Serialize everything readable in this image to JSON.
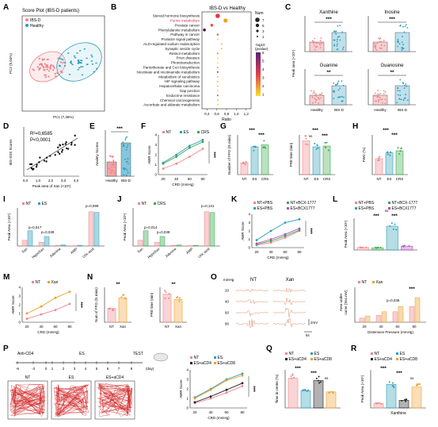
{
  "panels": {
    "A": {
      "label": "A",
      "title": "Score Plot (IBS-D patients)",
      "legend": [
        "IBS-D",
        "Healthy"
      ],
      "xlabel": "PC1 (7,36%)",
      "ylabel": "PC2 (5,04%)",
      "xticks": [
        "-15",
        "-10",
        "-5",
        "0",
        "5",
        "10"
      ],
      "yticks": [
        "-10",
        "-5",
        "0",
        "5",
        "10"
      ],
      "colors": {
        "ibs": "#f0868a",
        "healthy": "#2a9db8"
      }
    },
    "B": {
      "label": "B",
      "title": "IBS-D vs Healthy",
      "xlabel": "Ratio",
      "xticks": [
        "0,4",
        "0,6",
        "0,8",
        "1,0",
        "1,2"
      ],
      "size_legend_title": "Num",
      "size_legend": [
        "7",
        "5",
        "3",
        "1"
      ],
      "color_legend_title": "-log10\n(pvalue)",
      "color_ticks": [
        "6",
        "5",
        "4",
        "3",
        "2",
        "1"
      ],
      "pathways": [
        "Steroid hormone biosynthesis",
        "Purine metabolism",
        "Prostate cancer",
        "Phenylalanine metabolism",
        "Pathway in cancer",
        "Prolactin signal pathway",
        "ALD-regulated sodium reabsorption",
        "Synaptic vesicle cycle",
        "Retinol metabolism",
        "Prion diseases",
        "Phototransduction",
        "Pantothenate and CoA biosynthesis",
        "Nicotinate and nicotinamide metabolism",
        "Metabolism of xenobiotics",
        "HIF signaling pathway",
        "Hepatocellular carcinoma",
        "Gap junction",
        "Endocrine resistance",
        "Chemical carcinogenesis",
        "Ascorbate and aldarate metabolism"
      ]
    },
    "C": {
      "label": "C",
      "ylabel": "Peak area (×10⁶)",
      "metabolites": [
        "Xanthine",
        "Inosine",
        "Guanine",
        "Guanosine"
      ],
      "groups": [
        "Healthy",
        "IBS-D"
      ],
      "sig": [
        "***",
        "***",
        "**",
        "**"
      ]
    },
    "D": {
      "label": "D",
      "r2": "R²=0,6585",
      "p": "P<0,0001",
      "xlabel": "Peak area of Xan (×10⁶)",
      "ylabel": "IBS-SSS Scores",
      "xticks": [
        "0,0",
        "1,0",
        "2,0",
        "3,0",
        "4,0"
      ]
    },
    "E": {
      "label": "E",
      "ylabel": "Anxiety Scores",
      "groups": [
        "Healthy",
        "IBS-D"
      ],
      "sig": "***"
    },
    "F": {
      "label": "F",
      "legend": [
        "NT",
        "ES",
        "CRS"
      ],
      "xlabel": "CRD (mmHg)",
      "ylabel": "AWR Score",
      "xticks": [
        "20",
        "40",
        "60",
        "80"
      ],
      "sig": "***",
      "chart_data": {
        "type": "line",
        "x": [
          20,
          40,
          60,
          80
        ],
        "series": [
          {
            "name": "NT",
            "values": [
              0.6,
              1.1,
              1.8,
              2.6
            ]
          },
          {
            "name": "ES",
            "values": [
              1.2,
              2.0,
              2.9,
              3.5
            ]
          },
          {
            "name": "CRS",
            "values": [
              1.1,
              1.8,
              2.7,
              3.3
            ]
          }
        ],
        "ylim": [
          0,
          4
        ]
      }
    },
    "G": {
      "label": "G",
      "ylabel_left": "Number of FPO\n(/5 mins)",
      "ylabel_right": "PRE time (min)",
      "groups": [
        "NT",
        "ES",
        "CRS"
      ],
      "sig_left": [
        "***",
        "***"
      ],
      "sig_right": [
        "***",
        "ns",
        "***"
      ]
    },
    "H": {
      "label": "H",
      "ylabel": "FWC (%)",
      "groups": [
        "NT",
        "ES",
        "CRS"
      ],
      "sig": [
        "***",
        "***"
      ]
    },
    "I": {
      "label": "I",
      "legend": [
        "NT",
        "ES"
      ],
      "ylabel": "Peak Area (×10⁶)",
      "categories": [
        "Xan",
        "HypoXan",
        "Adenine",
        "AMP",
        "Uric acid"
      ],
      "pvals": [
        "p=0,017",
        "p=0,038",
        "p=0,099"
      ]
    },
    "J": {
      "label": "J",
      "legend": [
        "NT",
        "CRS"
      ],
      "ylabel": "Peak Area (×10⁶)",
      "categories": [
        "Xan",
        "HypoXan",
        "Adenine",
        "AMP",
        "Uric acid"
      ],
      "pvals": [
        "p=0,014",
        "p=0,038",
        "p=0,131"
      ]
    },
    "K": {
      "label": "K",
      "legend": [
        "NT+PBS",
        "NT+BCX-1777",
        "ES+PBS",
        "ES+BCX1777"
      ],
      "xlabel": "CRD (mmHg)",
      "ylabel": "AWR Score",
      "xticks": [
        "20",
        "40",
        "60",
        "80"
      ],
      "sig": "***"
    },
    "L": {
      "label": "L",
      "legend": [
        "NT+PBS",
        "NT+BCX-1777",
        "ES+PBS",
        "ES+BCX1777"
      ],
      "ylabel": "Peak Area (×10⁶)",
      "sig": [
        "***",
        "***",
        "ns"
      ]
    },
    "M": {
      "label": "M",
      "legend": [
        "NT",
        "Xan"
      ],
      "xlabel": "CRD (mmHg)",
      "ylabel": "AWR Score",
      "xticks": [
        "20",
        "40",
        "60",
        "80"
      ],
      "sig": "***"
    },
    "N": {
      "label": "N",
      "ylabel_left": "Num of FPO\n(/5 mins)",
      "ylabel_right": "PRE time (min)",
      "groups": [
        "NT",
        "Xan"
      ],
      "sig": [
        "**",
        "**"
      ]
    },
    "O": {
      "label": "O",
      "unit": "mmHg",
      "col_titles": [
        "NT",
        "Xan"
      ],
      "rows": [
        "20",
        "40",
        "60",
        "80"
      ],
      "scale_v": "2mV",
      "scale_t": "5s",
      "legend": [
        "NT",
        "Xan"
      ],
      "ylabel": "Area under\ncurve (Sec.mV)",
      "xlabel": "Distension Pressure (mmHg)",
      "xticks": [
        "20",
        "40",
        "60",
        "80"
      ],
      "pval": "p=0,036",
      "sig": "***"
    },
    "P": {
      "label": "P",
      "timeline_labels": [
        "Anti-CD4",
        "ES",
        "TEST"
      ],
      "days": [
        "-6",
        "-3",
        "0",
        "1",
        "2",
        "3",
        "4",
        "5",
        "6",
        "7",
        "8"
      ],
      "day_unit": "(day)",
      "arenas": [
        "NT",
        "ES",
        "ES+aCD4"
      ],
      "legend": [
        "NT",
        "ES",
        "ES+aCD4",
        "ES+aCD8"
      ],
      "xlabel": "CRD (mmHg)",
      "ylabel": "AWR Score",
      "xticks": [
        "20",
        "40",
        "60",
        "80"
      ],
      "sig": [
        "***",
        "ns"
      ]
    },
    "Q": {
      "label": "Q",
      "legend": [
        "NT",
        "ES",
        "ES+aCD4",
        "ES+aCD8"
      ],
      "ylabel": "Time in center (%)",
      "sig": [
        "***",
        "***",
        "ns"
      ]
    },
    "R": {
      "label": "R",
      "legend": [
        "NT",
        "ES",
        "ES+aCD4",
        "ES+aCD8"
      ],
      "ylabel": "Peak Area (×10⁶)",
      "xlabel": "Xanthine",
      "sig": [
        "***",
        "***",
        "ns"
      ]
    }
  }
}
